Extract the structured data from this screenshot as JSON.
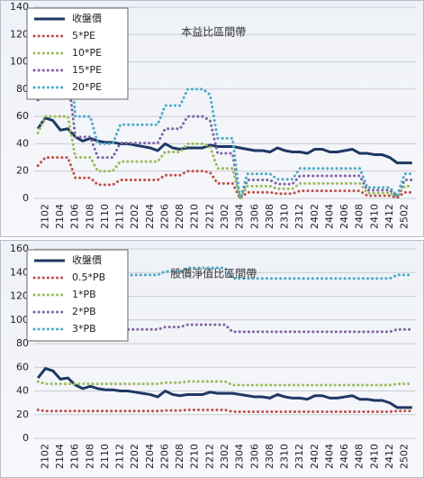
{
  "chart_data": [
    {
      "type": "line",
      "title": "本益比區間帶",
      "categories": [
        null,
        "2102",
        null,
        "2104",
        null,
        "2106",
        null,
        "2108",
        null,
        "2110",
        null,
        "2112",
        null,
        "2202",
        null,
        "2204",
        null,
        "2206",
        null,
        "2208",
        null,
        "2210",
        null,
        "2212",
        null,
        "2302",
        null,
        "2304",
        null,
        "2306",
        null,
        "2308",
        null,
        "2310",
        null,
        "2312",
        null,
        "2402",
        null,
        "2404",
        null,
        "2406",
        null,
        "2408",
        null,
        "2410",
        null,
        "2412",
        null,
        "2502",
        null
      ],
      "ylim": [
        0,
        140
      ],
      "yticks": [
        0,
        20,
        40,
        60,
        80,
        100,
        120,
        140
      ],
      "grid": true,
      "legend": "top-left",
      "series": [
        {
          "name": "收盤價",
          "color": "#1f3864",
          "style": "solid",
          "values": [
            51,
            59,
            57,
            50,
            51,
            45,
            42,
            44,
            42,
            41,
            41,
            40,
            40,
            39,
            38,
            37,
            35,
            40,
            37,
            36,
            37,
            37,
            37,
            39,
            38,
            38,
            38,
            37,
            36,
            35,
            35,
            34,
            37,
            35,
            34,
            34,
            33,
            36,
            36,
            34,
            34,
            35,
            36,
            33,
            33,
            32,
            32,
            30,
            26,
            26,
            26
          ]
        },
        {
          "name": "5*PE",
          "color": "#c0504d",
          "style": "dotted",
          "values": [
            24,
            30,
            30,
            30,
            30,
            15,
            15,
            15,
            10,
            10,
            10,
            13.5,
            13.5,
            13.5,
            13.5,
            13.5,
            13.5,
            17,
            17,
            17,
            20,
            20,
            20,
            19,
            11,
            11,
            11,
            0,
            4.5,
            4.5,
            4.5,
            4.5,
            3.5,
            3.5,
            3.5,
            5.5,
            5.5,
            5.5,
            5.5,
            5.5,
            5.5,
            5.5,
            5.5,
            5.5,
            2,
            2,
            2,
            2,
            0.5,
            4.5,
            4.5
          ]
        },
        {
          "name": "10*PE",
          "color": "#9bbb59",
          "style": "dotted",
          "values": [
            48,
            60,
            60,
            60,
            60,
            30,
            30,
            30,
            20,
            20,
            20,
            27,
            27,
            27,
            27,
            27,
            27,
            34,
            34,
            34,
            40,
            40,
            40,
            38,
            22,
            22,
            22,
            0,
            9,
            9,
            9,
            9,
            7,
            7,
            7,
            11,
            11,
            11,
            11,
            11,
            11,
            11,
            11,
            11,
            4,
            4,
            4,
            4,
            1,
            9,
            9
          ]
        },
        {
          "name": "15*PE",
          "color": "#8064a2",
          "style": "dotted",
          "values": [
            72,
            90,
            90,
            90,
            90,
            45,
            45,
            45,
            30,
            30,
            30,
            40.5,
            40.5,
            40.5,
            40.5,
            40.5,
            40.5,
            51,
            51,
            51,
            60,
            60,
            60,
            57,
            33,
            33,
            33,
            0,
            13.5,
            13.5,
            13.5,
            13.5,
            10.5,
            10.5,
            10.5,
            16.5,
            16.5,
            16.5,
            16.5,
            16.5,
            16.5,
            16.5,
            16.5,
            16.5,
            6,
            6,
            6,
            6,
            1.5,
            13.5,
            13.5
          ]
        },
        {
          "name": "20*PE",
          "color": "#4bacc6",
          "style": "dotted",
          "values": [
            96,
            120,
            120,
            120,
            120,
            60,
            60,
            60,
            40,
            40,
            40,
            54,
            54,
            54,
            54,
            54,
            54,
            68,
            68,
            68,
            80,
            80,
            80,
            76,
            44,
            44,
            44,
            0,
            18,
            18,
            18,
            18,
            14,
            14,
            14,
            22,
            22,
            22,
            22,
            22,
            22,
            22,
            22,
            22,
            8,
            8,
            8,
            8,
            2,
            18,
            18
          ]
        }
      ]
    },
    {
      "type": "line",
      "title": "股價淨值比區間帶",
      "categories": [
        null,
        "2102",
        null,
        "2104",
        null,
        "2106",
        null,
        "2108",
        null,
        "2110",
        null,
        "2112",
        null,
        "2202",
        null,
        "2204",
        null,
        "2206",
        null,
        "2208",
        null,
        "2210",
        null,
        "2212",
        null,
        "2302",
        null,
        "2304",
        null,
        "2306",
        null,
        "2308",
        null,
        "2310",
        null,
        "2312",
        null,
        "2402",
        null,
        "2404",
        null,
        "2406",
        null,
        "2408",
        null,
        "2410",
        null,
        "2412",
        null,
        "2502",
        null
      ],
      "ylim": [
        0,
        160
      ],
      "yticks": [
        0,
        20,
        40,
        60,
        80,
        100,
        120,
        140,
        160
      ],
      "grid": true,
      "legend": "top-left",
      "series": [
        {
          "name": "收盤價",
          "color": "#1f3864",
          "style": "solid",
          "values": [
            51,
            59,
            57,
            50,
            51,
            45,
            42,
            44,
            42,
            41,
            41,
            40,
            40,
            39,
            38,
            37,
            35,
            40,
            37,
            36,
            37,
            37,
            37,
            39,
            38,
            38,
            38,
            37,
            36,
            35,
            35,
            34,
            37,
            35,
            34,
            34,
            33,
            36,
            36,
            34,
            34,
            35,
            36,
            33,
            33,
            32,
            32,
            30,
            26,
            26,
            26
          ]
        },
        {
          "name": "0.5*PB",
          "color": "#c0504d",
          "style": "dotted",
          "values": [
            24,
            23,
            23,
            23,
            23,
            23,
            23,
            23,
            23,
            23,
            23,
            23,
            23,
            23,
            23,
            23,
            23,
            23.5,
            23.5,
            23.5,
            24,
            24,
            24,
            24,
            24,
            24,
            22.5,
            22.5,
            22.5,
            22.5,
            22.5,
            22.5,
            22.5,
            22.5,
            22.5,
            22.5,
            22.5,
            22.5,
            22.5,
            22.5,
            22.5,
            22.5,
            22.5,
            22.5,
            22.5,
            22.5,
            22.5,
            22.5,
            23,
            23,
            23
          ]
        },
        {
          "name": "1*PB",
          "color": "#9bbb59",
          "style": "dotted",
          "values": [
            48,
            46,
            46,
            46,
            46,
            46,
            46,
            46,
            46,
            46,
            46,
            46,
            46,
            46,
            46,
            46,
            46,
            47,
            47,
            47,
            48,
            48,
            48,
            48,
            48,
            48,
            45,
            45,
            45,
            45,
            45,
            45,
            45,
            45,
            45,
            45,
            45,
            45,
            45,
            45,
            45,
            45,
            45,
            45,
            45,
            45,
            45,
            45,
            46,
            46,
            46
          ]
        },
        {
          "name": "2*PB",
          "color": "#8064a2",
          "style": "dotted",
          "values": [
            96,
            92,
            92,
            92,
            92,
            92,
            92,
            92,
            92,
            92,
            92,
            92,
            92,
            92,
            92,
            92,
            92,
            94,
            94,
            94,
            96,
            96,
            96,
            96,
            96,
            96,
            90,
            90,
            90,
            90,
            90,
            90,
            90,
            90,
            90,
            90,
            90,
            90,
            90,
            90,
            90,
            90,
            90,
            90,
            90,
            90,
            90,
            90,
            92,
            92,
            92
          ]
        },
        {
          "name": "3*PB",
          "color": "#4bacc6",
          "style": "dotted",
          "values": [
            144,
            138,
            138,
            138,
            138,
            138,
            138,
            138,
            138,
            138,
            138,
            138,
            138,
            138,
            138,
            138,
            138,
            141,
            141,
            141,
            144,
            144,
            144,
            144,
            144,
            144,
            135,
            135,
            135,
            135,
            135,
            135,
            135,
            135,
            135,
            135,
            135,
            135,
            135,
            135,
            135,
            135,
            135,
            135,
            135,
            135,
            135,
            135,
            138,
            138,
            138
          ]
        }
      ]
    }
  ]
}
